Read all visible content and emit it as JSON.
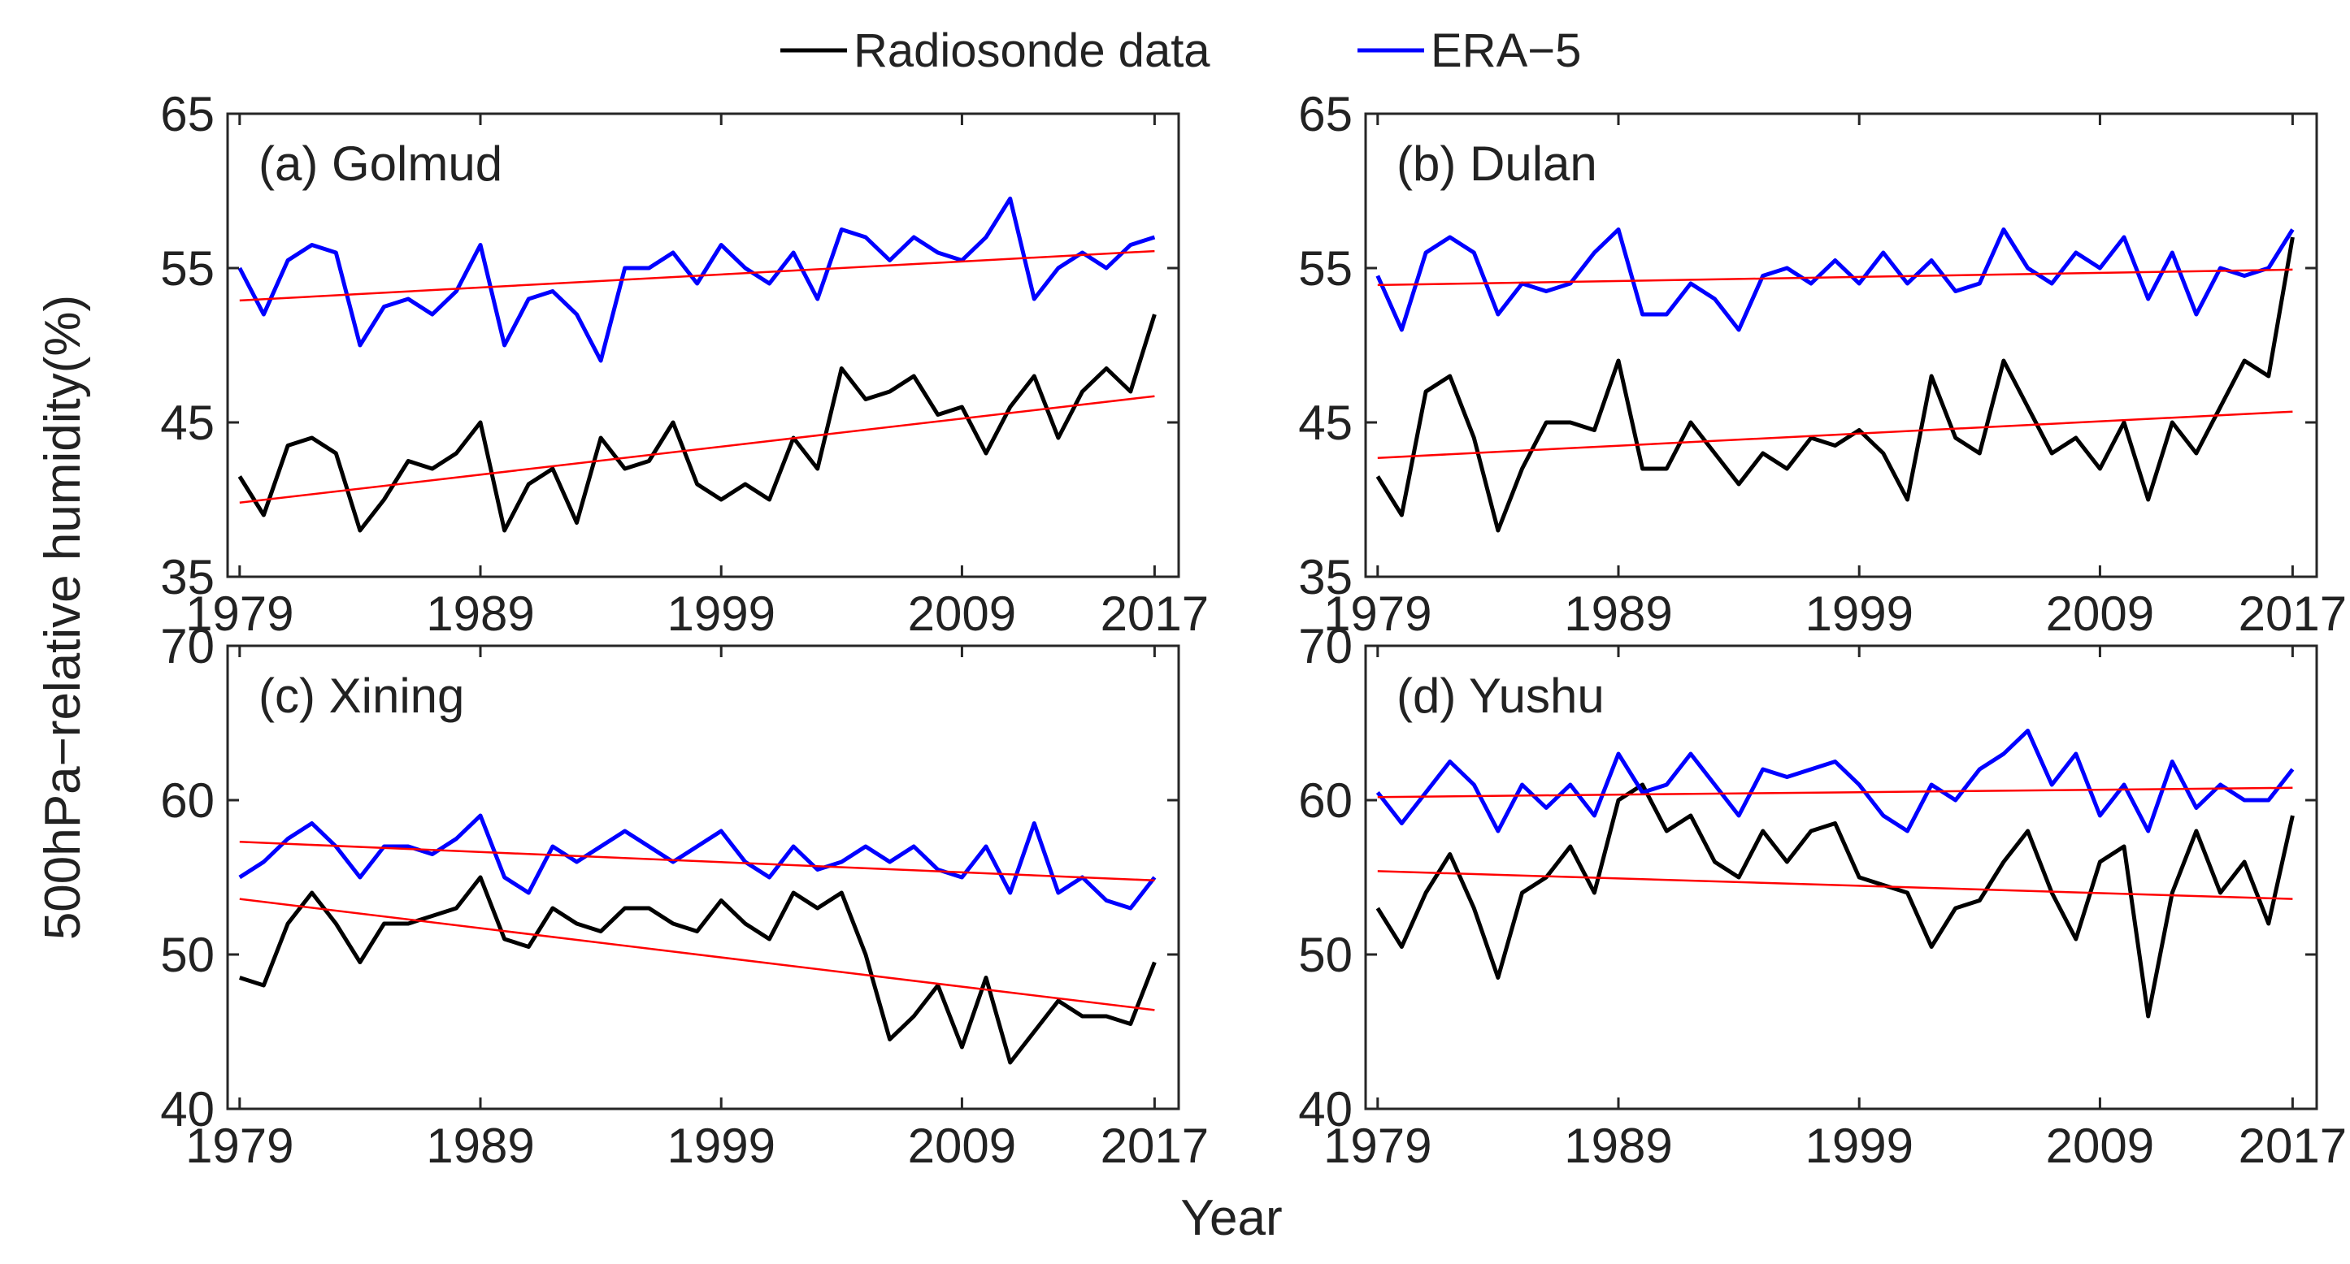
{
  "legend": {
    "entries": [
      {
        "label": "Radiosonde data",
        "color": "#000000"
      },
      {
        "label": "ERA−5",
        "color": "#0000ff"
      }
    ],
    "placement": "top-center"
  },
  "xlabel": "Year",
  "ylabel": "500hPa−relative humidity(%)",
  "colors": {
    "radiosonde": "#000000",
    "era5": "#0000ff",
    "trend": "#ff0000",
    "axes": "#262626"
  },
  "chart_data": [
    {
      "type": "line",
      "title": "(a) Golmud",
      "xlim": [
        1978.5,
        2018
      ],
      "xticks": [
        1979,
        1989,
        1999,
        2009,
        2017
      ],
      "ylim": [
        35,
        65
      ],
      "yticks": [
        35,
        45,
        55,
        65
      ],
      "series": [
        {
          "name": "Radiosonde data",
          "x": [
            1979,
            1980,
            1981,
            1982,
            1983,
            1984,
            1985,
            1986,
            1987,
            1988,
            1989,
            1990,
            1991,
            1992,
            1993,
            1994,
            1995,
            1996,
            1997,
            1998,
            1999,
            2000,
            2001,
            2002,
            2003,
            2004,
            2005,
            2006,
            2007,
            2008,
            2009,
            2010,
            2011,
            2012,
            2013,
            2014,
            2015,
            2016,
            2017
          ],
          "y": [
            41.5,
            39,
            43.5,
            44,
            43,
            38,
            40,
            42.5,
            42,
            43,
            45,
            38,
            41,
            42,
            38.5,
            44,
            42,
            42.5,
            45,
            41,
            40,
            41,
            40,
            44,
            42,
            48.5,
            46.5,
            47,
            48,
            45.5,
            46,
            43,
            46,
            48,
            44,
            47,
            48.5,
            47,
            52
          ]
        },
        {
          "name": "ERA−5",
          "x": [
            1979,
            1980,
            1981,
            1982,
            1983,
            1984,
            1985,
            1986,
            1987,
            1988,
            1989,
            1990,
            1991,
            1992,
            1993,
            1994,
            1995,
            1996,
            1997,
            1998,
            1999,
            2000,
            2001,
            2002,
            2003,
            2004,
            2005,
            2006,
            2007,
            2008,
            2009,
            2010,
            2011,
            2012,
            2013,
            2014,
            2015,
            2016,
            2017
          ],
          "y": [
            55,
            52,
            55.5,
            56.5,
            56,
            50,
            52.5,
            53,
            52,
            53.5,
            56.5,
            50,
            53,
            53.5,
            52,
            49,
            55,
            55,
            56,
            54,
            56.5,
            55,
            54,
            56,
            53,
            57.5,
            57,
            55.5,
            57,
            56,
            55.5,
            57,
            59.5,
            53,
            55,
            56,
            55,
            56.5,
            57
          ]
        },
        {
          "name": "Radiosonde trend",
          "x": [
            1979,
            2017
          ],
          "y": [
            39.8,
            46.7
          ]
        },
        {
          "name": "ERA−5 trend",
          "x": [
            1979,
            2017
          ],
          "y": [
            52.9,
            56.1
          ]
        }
      ]
    },
    {
      "type": "line",
      "title": "(b) Dulan",
      "xlim": [
        1978.5,
        2018
      ],
      "xticks": [
        1979,
        1989,
        1999,
        2009,
        2017
      ],
      "ylim": [
        35,
        65
      ],
      "yticks": [
        35,
        45,
        55,
        65
      ],
      "series": [
        {
          "name": "Radiosonde data",
          "x": [
            1979,
            1980,
            1981,
            1982,
            1983,
            1984,
            1985,
            1986,
            1987,
            1988,
            1989,
            1990,
            1991,
            1992,
            1993,
            1994,
            1995,
            1996,
            1997,
            1998,
            1999,
            2000,
            2001,
            2002,
            2003,
            2004,
            2005,
            2006,
            2007,
            2008,
            2009,
            2010,
            2011,
            2012,
            2013,
            2014,
            2015,
            2016,
            2017
          ],
          "y": [
            41.5,
            39,
            47,
            48,
            44,
            38,
            42,
            45,
            45,
            44.5,
            49,
            42,
            42,
            45,
            43,
            41,
            43,
            42,
            44,
            43.5,
            44.5,
            43,
            40,
            48,
            44,
            43,
            49,
            46,
            43,
            44,
            42,
            45,
            40,
            45,
            43,
            46,
            49,
            48,
            57
          ]
        },
        {
          "name": "ERA−5",
          "x": [
            1979,
            1980,
            1981,
            1982,
            1983,
            1984,
            1985,
            1986,
            1987,
            1988,
            1989,
            1990,
            1991,
            1992,
            1993,
            1994,
            1995,
            1996,
            1997,
            1998,
            1999,
            2000,
            2001,
            2002,
            2003,
            2004,
            2005,
            2006,
            2007,
            2008,
            2009,
            2010,
            2011,
            2012,
            2013,
            2014,
            2015,
            2016,
            2017
          ],
          "y": [
            54.5,
            51,
            56,
            57,
            56,
            52,
            54,
            53.5,
            54,
            56,
            57.5,
            52,
            52,
            54,
            53,
            51,
            54.5,
            55,
            54,
            55.5,
            54,
            56,
            54,
            55.5,
            53.5,
            54,
            57.5,
            55,
            54,
            56,
            55,
            57,
            53,
            56,
            52,
            55,
            54.5,
            55,
            57.5
          ]
        },
        {
          "name": "Radiosonde trend",
          "x": [
            1979,
            2017
          ],
          "y": [
            42.7,
            45.7
          ]
        },
        {
          "name": "ERA−5 trend",
          "x": [
            1979,
            2017
          ],
          "y": [
            53.9,
            54.9
          ]
        }
      ]
    },
    {
      "type": "line",
      "title": "(c) Xining",
      "xlim": [
        1978.5,
        2018
      ],
      "xticks": [
        1979,
        1989,
        1999,
        2009,
        2017
      ],
      "ylim": [
        40,
        70
      ],
      "yticks": [
        40,
        50,
        60,
        70
      ],
      "series": [
        {
          "name": "Radiosonde data",
          "x": [
            1979,
            1980,
            1981,
            1982,
            1983,
            1984,
            1985,
            1986,
            1987,
            1988,
            1989,
            1990,
            1991,
            1992,
            1993,
            1994,
            1995,
            1996,
            1997,
            1998,
            1999,
            2000,
            2001,
            2002,
            2003,
            2004,
            2005,
            2006,
            2007,
            2008,
            2009,
            2010,
            2011,
            2012,
            2013,
            2014,
            2015,
            2016,
            2017
          ],
          "y": [
            48.5,
            48,
            52,
            54,
            52,
            49.5,
            52,
            52,
            52.5,
            53,
            55,
            51,
            50.5,
            53,
            52,
            51.5,
            53,
            53,
            52,
            51.5,
            53.5,
            52,
            51,
            54,
            53,
            54,
            50,
            44.5,
            46,
            48,
            44,
            48.5,
            43,
            45,
            47,
            46,
            46,
            45.5,
            49.5
          ]
        },
        {
          "name": "ERA−5",
          "x": [
            1979,
            1980,
            1981,
            1982,
            1983,
            1984,
            1985,
            1986,
            1987,
            1988,
            1989,
            1990,
            1991,
            1992,
            1993,
            1994,
            1995,
            1996,
            1997,
            1998,
            1999,
            2000,
            2001,
            2002,
            2003,
            2004,
            2005,
            2006,
            2007,
            2008,
            2009,
            2010,
            2011,
            2012,
            2013,
            2014,
            2015,
            2016,
            2017
          ],
          "y": [
            55,
            56,
            57.5,
            58.5,
            57,
            55,
            57,
            57,
            56.5,
            57.5,
            59,
            55,
            54,
            57,
            56,
            57,
            58,
            57,
            56,
            57,
            58,
            56,
            55,
            57,
            55.5,
            56,
            57,
            56,
            57,
            55.5,
            55,
            57,
            54,
            58.5,
            54,
            55,
            53.5,
            53,
            55
          ]
        },
        {
          "name": "Radiosonde trend",
          "x": [
            1979,
            2017
          ],
          "y": [
            53.6,
            46.4
          ]
        },
        {
          "name": "ERA−5 trend",
          "x": [
            1979,
            2017
          ],
          "y": [
            57.3,
            54.8
          ]
        }
      ]
    },
    {
      "type": "line",
      "title": "(d) Yushu",
      "xlim": [
        1978.5,
        2018
      ],
      "xticks": [
        1979,
        1989,
        1999,
        2009,
        2017
      ],
      "ylim": [
        40,
        70
      ],
      "yticks": [
        40,
        50,
        60,
        70
      ],
      "series": [
        {
          "name": "Radiosonde data",
          "x": [
            1979,
            1980,
            1981,
            1982,
            1983,
            1984,
            1985,
            1986,
            1987,
            1988,
            1989,
            1990,
            1991,
            1992,
            1993,
            1994,
            1995,
            1996,
            1997,
            1998,
            1999,
            2000,
            2001,
            2002,
            2003,
            2004,
            2005,
            2006,
            2007,
            2008,
            2009,
            2010,
            2011,
            2012,
            2013,
            2014,
            2015,
            2016,
            2017
          ],
          "y": [
            53,
            50.5,
            54,
            56.5,
            53,
            48.5,
            54,
            55,
            57,
            54,
            60,
            61,
            58,
            59,
            56,
            55,
            58,
            56,
            58,
            58.5,
            55,
            54.5,
            54,
            50.5,
            53,
            53.5,
            56,
            58,
            54,
            51,
            56,
            57,
            46,
            54,
            58,
            54,
            56,
            52,
            59
          ]
        },
        {
          "name": "ERA−5",
          "x": [
            1979,
            1980,
            1981,
            1982,
            1983,
            1984,
            1985,
            1986,
            1987,
            1988,
            1989,
            1990,
            1991,
            1992,
            1993,
            1994,
            1995,
            1996,
            1997,
            1998,
            1999,
            2000,
            2001,
            2002,
            2003,
            2004,
            2005,
            2006,
            2007,
            2008,
            2009,
            2010,
            2011,
            2012,
            2013,
            2014,
            2015,
            2016,
            2017
          ],
          "y": [
            60.5,
            58.5,
            60.5,
            62.5,
            61,
            58,
            61,
            59.5,
            61,
            59,
            63,
            60.5,
            61,
            63,
            61,
            59,
            62,
            61.5,
            62,
            62.5,
            61,
            59,
            58,
            61,
            60,
            62,
            63,
            64.5,
            61,
            63,
            59,
            61,
            58,
            62.5,
            59.5,
            61,
            60,
            60,
            62
          ]
        },
        {
          "name": "Radiosonde trend",
          "x": [
            1979,
            2017
          ],
          "y": [
            55.4,
            53.6
          ]
        },
        {
          "name": "ERA−5 trend",
          "x": [
            1979,
            2017
          ],
          "y": [
            60.2,
            60.8
          ]
        }
      ]
    }
  ]
}
